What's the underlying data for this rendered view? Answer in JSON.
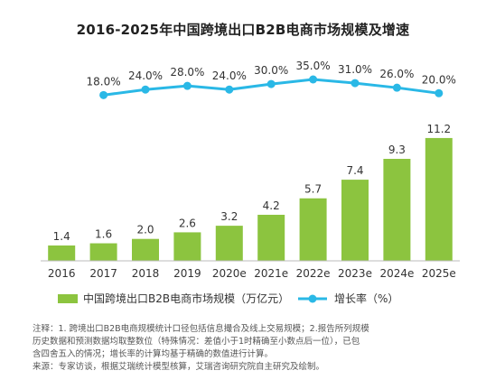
{
  "chart_data": {
    "type": "bar+line",
    "title": "2016-2025年中国跨境出口B2B电商市场规模及增速",
    "categories": [
      "2016",
      "2017",
      "2018",
      "2019",
      "2020e",
      "2021e",
      "2022e",
      "2023e",
      "2024e",
      "2025e"
    ],
    "series": [
      {
        "name": "中国跨境出口B2B电商市场规模（万亿元）",
        "type": "bar",
        "values": [
          1.4,
          1.6,
          2.0,
          2.6,
          3.2,
          4.2,
          5.7,
          7.4,
          9.3,
          11.2
        ],
        "labels": [
          "1.4",
          "1.6",
          "2.0",
          "2.6",
          "3.2",
          "4.2",
          "5.7",
          "7.4",
          "9.3",
          "11.2"
        ]
      },
      {
        "name": "增长率（%）",
        "type": "line",
        "values": [
          null,
          18.0,
          24.0,
          28.0,
          24.0,
          30.0,
          35.0,
          31.0,
          26.0,
          20.0
        ],
        "labels": [
          "",
          "18.0%",
          "24.0%",
          "28.0%",
          "24.0%",
          "30.0%",
          "35.0%",
          "31.0%",
          "26.0%",
          "20.0%"
        ]
      }
    ],
    "legend_position": "bottom",
    "grid": false
  },
  "colors": {
    "bar": "#8cc43f",
    "line": "#2ab8e6",
    "axis": "#bbbbbb"
  },
  "footnote": {
    "line1": "注释：1. 跨境出口B2B电商规模统计口径包括信息撮合及线上交易规模；2.报告所列规模",
    "line2": "历史数据和预测数据均取整数位（特殊情况：差值小于1时精确至小数点后一位），已包",
    "line3": "含四舍五入的情况；增长率的计算均基于精确的数值进行计算。",
    "line4": "来源：专家访谈，根据艾瑞统计模型核算，艾瑞咨询研究院自主研究及绘制。"
  }
}
